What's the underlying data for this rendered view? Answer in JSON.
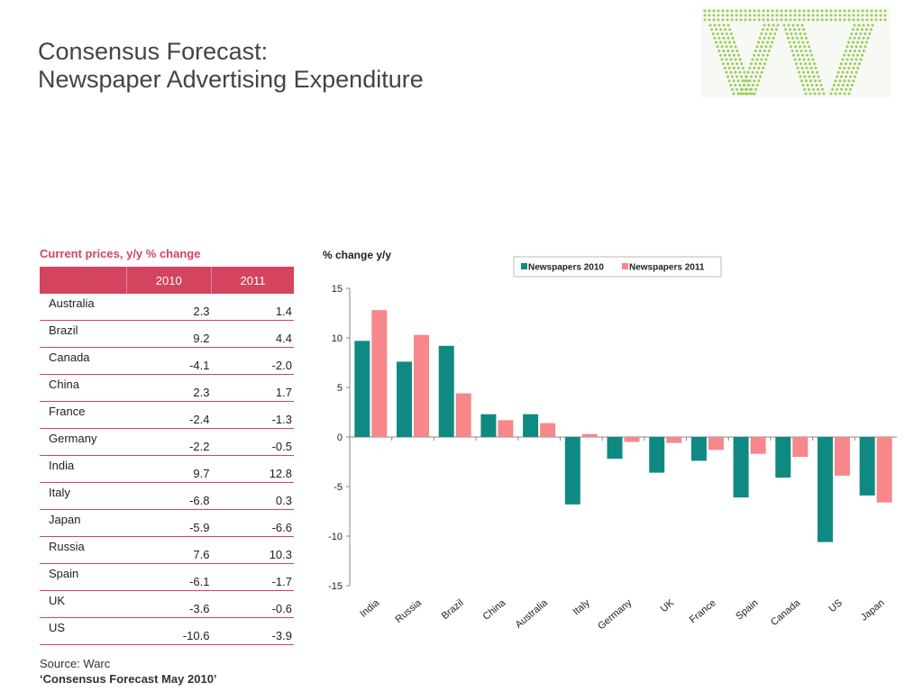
{
  "header": {
    "title_line1": "Consensus Forecast:",
    "title_line2": "Newspaper Advertising Expenditure"
  },
  "logo": {
    "name": "dotted-W-logo",
    "color": "#9ccc5a"
  },
  "table": {
    "label": "Current prices, y/y % change",
    "headers": [
      "",
      "2010",
      "2011"
    ],
    "rows": [
      {
        "country": "Australia",
        "v2010": "2.3",
        "v2011": "1.4"
      },
      {
        "country": "Brazil",
        "v2010": "9.2",
        "v2011": "4.4"
      },
      {
        "country": "Canada",
        "v2010": "-4.1",
        "v2011": "-2.0"
      },
      {
        "country": "China",
        "v2010": "2.3",
        "v2011": "1.7"
      },
      {
        "country": "France",
        "v2010": "-2.4",
        "v2011": "-1.3"
      },
      {
        "country": "Germany",
        "v2010": "-2.2",
        "v2011": "-0.5"
      },
      {
        "country": "India",
        "v2010": "9.7",
        "v2011": "12.8"
      },
      {
        "country": "Italy",
        "v2010": "-6.8",
        "v2011": "0.3"
      },
      {
        "country": "Japan",
        "v2010": "-5.9",
        "v2011": "-6.6"
      },
      {
        "country": "Russia",
        "v2010": "7.6",
        "v2011": "10.3"
      },
      {
        "country": "Spain",
        "v2010": "-6.1",
        "v2011": "-1.7"
      },
      {
        "country": "UK",
        "v2010": "-3.6",
        "v2011": "-0.6"
      },
      {
        "country": "US",
        "v2010": "-10.6",
        "v2011": "-3.9"
      }
    ],
    "accent_color": "#d4445f"
  },
  "chart_data": {
    "type": "bar",
    "title": "% change y/y",
    "xlabel": "",
    "ylabel": "",
    "categories": [
      "India",
      "Russia",
      "Brazil",
      "China",
      "Australia",
      "Italy",
      "Germany",
      "UK",
      "France",
      "Spain",
      "Canada",
      "US",
      "Japan"
    ],
    "series": [
      {
        "name": "Newspapers 2010",
        "color": "#0f8a82",
        "values": [
          9.7,
          7.6,
          9.2,
          2.3,
          2.3,
          -6.8,
          -2.2,
          -3.6,
          -2.4,
          -6.1,
          -4.1,
          -10.6,
          -5.9
        ]
      },
      {
        "name": "Newspapers 2011",
        "color": "#f7878a",
        "values": [
          12.8,
          10.3,
          4.4,
          1.7,
          1.4,
          0.3,
          -0.5,
          -0.6,
          -1.3,
          -1.7,
          -2.0,
          -3.9,
          -6.6
        ]
      }
    ],
    "ylim": [
      -15,
      15
    ],
    "yticks": [
      15,
      10,
      5,
      0,
      -5,
      -10,
      -15
    ],
    "grid": false,
    "legend": "top-right"
  },
  "footer": {
    "source": "Source: Warc",
    "publication": "‘Consensus Forecast May 2010’"
  }
}
